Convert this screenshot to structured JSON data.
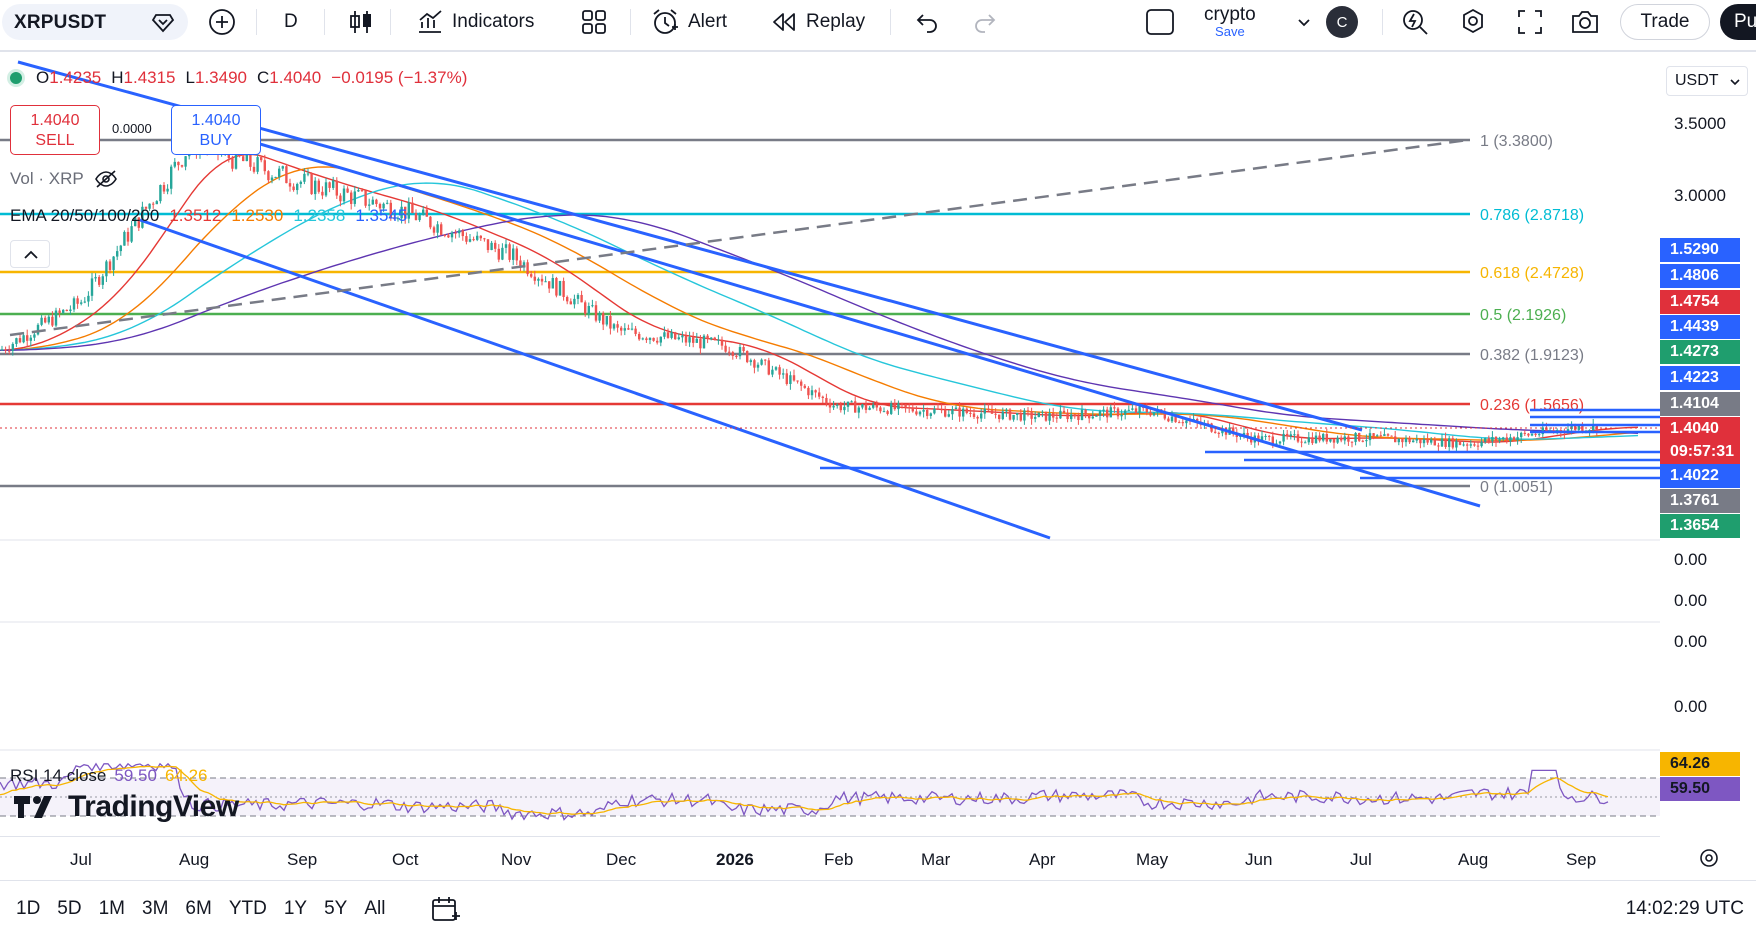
{
  "toolbar": {
    "symbol": "XRPUSDT",
    "interval": "D",
    "indicators_label": "Indicators",
    "alert_label": "Alert",
    "replay_label": "Replay",
    "layout_name": "crypto",
    "layout_save": "Save",
    "avatar_letter": "C",
    "trade_label": "Trade",
    "publish_label": "Pu"
  },
  "legend": {
    "open_label": "O",
    "open": "1.4235",
    "high_label": "H",
    "high": "1.4315",
    "low_label": "L",
    "low": "1.3490",
    "close_label": "C",
    "close": "1.4040",
    "change": "−0.0195 (−1.37%)"
  },
  "trade": {
    "sell_price": "1.4040",
    "sell_label": "SELL",
    "buy_price": "1.4040",
    "buy_label": "BUY",
    "spread": "0.0000"
  },
  "volume": {
    "label": "Vol · XRP"
  },
  "ema": {
    "label": "EMA 20/50/100/200",
    "v20": "1.3512",
    "v50": "1.2530",
    "v100": "1.2358",
    "v200": "1.3545",
    "colors": {
      "ema20": "#e53935",
      "ema50": "#f57c00",
      "ema100": "#26c6da",
      "ema200": "#5e35b1"
    }
  },
  "rsi": {
    "label": "RSI 14 close",
    "value": "59.50",
    "ma": "64.26"
  },
  "price_scale": {
    "currency": "USDT",
    "ticks": [
      "3.5000",
      "3.0000"
    ],
    "sub_ticks": [
      "0.00",
      "0.00",
      "0.00",
      "0.00"
    ],
    "labels": [
      {
        "text": "1.5290",
        "color": "#2962ff"
      },
      {
        "text": "1.4806",
        "color": "#2962ff"
      },
      {
        "text": "1.4754",
        "color": "#e0303b"
      },
      {
        "text": "1.4439",
        "color": "#2962ff"
      },
      {
        "text": "1.4273",
        "color": "#1f9e6e"
      },
      {
        "text": "1.4223",
        "color": "#2962ff"
      },
      {
        "text": "1.4104",
        "color": "#787b86"
      },
      {
        "text": "1.4040",
        "color": "#e0303b"
      },
      {
        "text": "09:57:31",
        "color": "#e0303b"
      },
      {
        "text": "1.4022",
        "color": "#2962ff"
      },
      {
        "text": "1.3761",
        "color": "#787b86"
      },
      {
        "text": "1.3654",
        "color": "#1f9e6e"
      }
    ],
    "rsi_labels": [
      {
        "text": "64.26",
        "color": "#f7b500"
      },
      {
        "text": "59.50",
        "color": "#7e57c2"
      }
    ]
  },
  "fib_levels": [
    {
      "ratio": "1",
      "price": "3.3800",
      "label": "1 (3.3800)",
      "color": "#787b86"
    },
    {
      "ratio": "0.786",
      "price": "2.8718",
      "label": "0.786 (2.8718)",
      "color": "#00bcd4"
    },
    {
      "ratio": "0.618",
      "price": "2.4728",
      "label": "0.618 (2.4728)",
      "color": "#f7b500"
    },
    {
      "ratio": "0.5",
      "price": "2.1926",
      "label": "0.5 (2.1926)",
      "color": "#4caf50"
    },
    {
      "ratio": "0.382",
      "price": "1.9123",
      "label": "0.382 (1.9123)",
      "color": "#787b86"
    },
    {
      "ratio": "0.236",
      "price": "1.5656",
      "label": "0.236 (1.5656)",
      "color": "#e53935"
    },
    {
      "ratio": "0",
      "price": "1.0051",
      "label": "0 (1.0051)",
      "color": "#787b86"
    }
  ],
  "chart_data": {
    "type": "line",
    "x": [
      "Jul",
      "Aug",
      "Sep",
      "Oct",
      "Nov",
      "Dec",
      "2026",
      "Feb",
      "Mar",
      "Apr",
      "May",
      "Jun",
      "Jul",
      "Aug",
      "Sep"
    ],
    "series": [
      {
        "values": [
          2.25,
          3.3,
          3.05,
          2.85,
          2.55,
          2.05,
          1.95,
          1.55,
          1.52,
          1.48,
          1.52,
          1.33,
          1.34,
          1.3,
          1.41
        ]
      }
    ]
  },
  "time_axis": {
    "labels": [
      "Jul",
      "Aug",
      "Sep",
      "Oct",
      "Nov",
      "Dec",
      "2026",
      "Feb",
      "Mar",
      "Apr",
      "May",
      "Jun",
      "Jul",
      "Aug",
      "Sep"
    ]
  },
  "bottom": {
    "ranges": [
      "1D",
      "5D",
      "1M",
      "3M",
      "6M",
      "YTD",
      "1Y",
      "5Y",
      "All"
    ],
    "clock": "14:02:29 UTC"
  },
  "logo": {
    "text": "TradingView"
  }
}
